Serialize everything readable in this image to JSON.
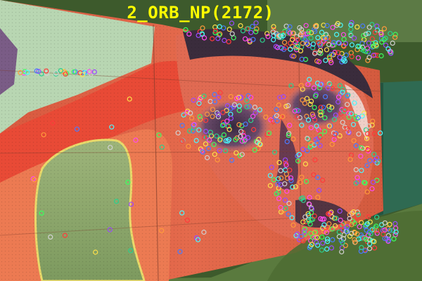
{
  "overlay": {
    "title": "2_ORB_NP(2172)"
  },
  "colors": {
    "title": "#ffff00",
    "wall_base": "#e0654a",
    "face_shadow": "#4a3a5a",
    "green_blob": "#8aa266",
    "teal_fence": "#2f6a52",
    "foliage": "#3d5a2c"
  },
  "keypoints": {
    "marker": "circle",
    "palette": [
      "#ff3b3b",
      "#3bff5e",
      "#4a7bff",
      "#ffe14a",
      "#ff4af0",
      "#4af8ff",
      "#ff9a3b",
      "#9a4aff",
      "#2bd18e",
      "#d1d1d1"
    ]
  }
}
